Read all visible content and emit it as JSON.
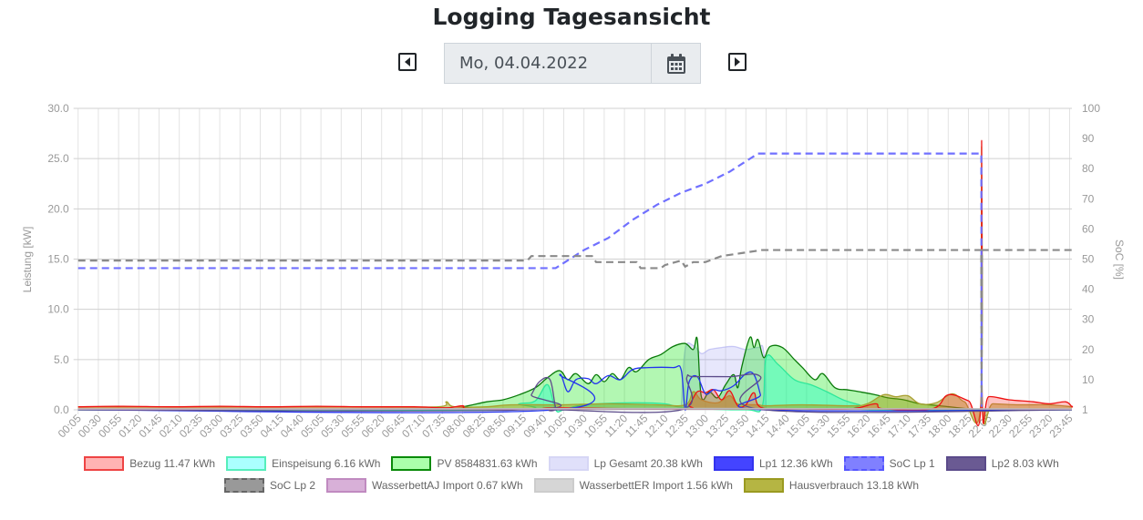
{
  "header": {
    "title": "Logging Tagesansicht",
    "date": "Mo, 04.04.2022",
    "prev_icon": "caret-left-icon",
    "next_icon": "caret-right-icon",
    "calendar_icon": "calendar-icon"
  },
  "chart_data": {
    "type": "line",
    "xlabels": [
      "00:05",
      "00:30",
      "00:55",
      "01:20",
      "01:45",
      "02:10",
      "02:35",
      "03:00",
      "03:25",
      "03:50",
      "04:15",
      "04:40",
      "05:05",
      "05:30",
      "05:55",
      "06:20",
      "06:45",
      "07:10",
      "07:35",
      "08:00",
      "08:25",
      "08:50",
      "09:15",
      "09:40",
      "10:05",
      "10:30",
      "10:55",
      "11:20",
      "11:45",
      "12:10",
      "12:35",
      "13:00",
      "13:25",
      "13:50",
      "14:15",
      "14:40",
      "15:05",
      "15:30",
      "15:55",
      "16:20",
      "16:45",
      "17:10",
      "17:35",
      "18:00",
      "18:25",
      "22:05",
      "22:30",
      "22:55",
      "23:20",
      "23:45"
    ],
    "ylabel": "Leistung [kW]",
    "ylim": [
      0,
      30
    ],
    "yticks": [
      "0.0",
      "5.0",
      "10.0",
      "15.0",
      "20.0",
      "25.0",
      "30.0"
    ],
    "y2label": "SoC [%]",
    "y2lim": [
      0,
      100
    ],
    "y2ticks": [
      "1",
      "10",
      "20",
      "30",
      "40",
      "50",
      "60",
      "70",
      "80",
      "90",
      "100"
    ],
    "grid": true,
    "legend_position": "bottom",
    "series": [
      {
        "name": "Lp Gesamt 20.38 kWh",
        "axis": "left",
        "fill": "rgba(120,120,240,0.18)",
        "stroke": "rgba(170,170,240,0.6)",
        "swatch": "#e0e0fa",
        "swatchBorder": "#d6d6f5",
        "dash": false,
        "points": [
          [
            "12:30",
            0
          ],
          [
            "12:35",
            6.0
          ],
          [
            "12:45",
            6.4
          ],
          [
            "12:55",
            5.6
          ],
          [
            "13:05",
            6.0
          ],
          [
            "13:20",
            6.2
          ],
          [
            "13:35",
            6.3
          ],
          [
            "13:50",
            6.0
          ],
          [
            "14:05",
            6.2
          ],
          [
            "14:12",
            5.8
          ],
          [
            "14:15",
            0
          ]
        ]
      },
      {
        "name": "PV 8584831.63 kWh",
        "axis": "left",
        "fill": "rgba(0,230,0,0.3)",
        "stroke": "#0a7a0a",
        "swatch": "#aaffaa",
        "swatchBorder": "#0a8a0a",
        "dash": false,
        "points": [
          [
            "00:05",
            0
          ],
          [
            "07:30",
            0
          ],
          [
            "08:00",
            0.3
          ],
          [
            "08:30",
            0.8
          ],
          [
            "08:50",
            1.0
          ],
          [
            "09:10",
            1.5
          ],
          [
            "09:30",
            2.2
          ],
          [
            "09:45",
            3.2
          ],
          [
            "10:00",
            3.9
          ],
          [
            "10:10",
            3.0
          ],
          [
            "10:20",
            3.6
          ],
          [
            "10:35",
            2.6
          ],
          [
            "10:45",
            3.5
          ],
          [
            "10:55",
            2.8
          ],
          [
            "11:05",
            3.6
          ],
          [
            "11:15",
            3.0
          ],
          [
            "11:25",
            4.2
          ],
          [
            "11:35",
            3.8
          ],
          [
            "11:50",
            5.0
          ],
          [
            "12:05",
            5.5
          ],
          [
            "12:20",
            6.3
          ],
          [
            "12:35",
            6.6
          ],
          [
            "12:45",
            6.0
          ],
          [
            "12:50",
            7.0
          ],
          [
            "12:55",
            1.3
          ],
          [
            "13:05",
            1.8
          ],
          [
            "13:15",
            1.2
          ],
          [
            "13:25",
            2.5
          ],
          [
            "13:35",
            3.5
          ],
          [
            "13:40",
            2.2
          ],
          [
            "13:45",
            4.3
          ],
          [
            "13:55",
            7.2
          ],
          [
            "14:00",
            6.2
          ],
          [
            "14:05",
            7.0
          ],
          [
            "14:12",
            5.2
          ],
          [
            "14:20",
            6.3
          ],
          [
            "14:35",
            6.2
          ],
          [
            "14:50",
            5.0
          ],
          [
            "15:00",
            4.2
          ],
          [
            "15:15",
            3.0
          ],
          [
            "15:25",
            3.6
          ],
          [
            "15:40",
            2.2
          ],
          [
            "15:55",
            2.0
          ],
          [
            "16:10",
            1.8
          ],
          [
            "16:30",
            1.5
          ],
          [
            "16:45",
            1.2
          ],
          [
            "17:05",
            1.0
          ],
          [
            "17:25",
            0.6
          ],
          [
            "17:50",
            0.4
          ],
          [
            "18:25",
            0.1
          ],
          [
            "20:40",
            0.05
          ],
          [
            "22:05",
            0
          ],
          [
            "23:55",
            0
          ]
        ]
      },
      {
        "name": "Einspeisung 6.16 kWh",
        "axis": "left",
        "fill": "rgba(0,255,200,0.35)",
        "stroke": "#2ee89a",
        "swatch": "#aaffff",
        "swatchBorder": "#55eebb",
        "dash": false,
        "points": [
          [
            "00:05",
            0
          ],
          [
            "08:40",
            0
          ],
          [
            "09:10",
            0.6
          ],
          [
            "09:30",
            0.9
          ],
          [
            "09:45",
            2.5
          ],
          [
            "09:55",
            0
          ],
          [
            "10:05",
            0
          ],
          [
            "10:30",
            0.5
          ],
          [
            "11:30",
            0.7
          ],
          [
            "12:10",
            0.6
          ],
          [
            "12:35",
            0.2
          ],
          [
            "13:50",
            0
          ],
          [
            "14:10",
            0.3
          ],
          [
            "14:15",
            5.2
          ],
          [
            "14:30",
            4.5
          ],
          [
            "14:50",
            3.0
          ],
          [
            "15:10",
            2.5
          ],
          [
            "15:30",
            1.8
          ],
          [
            "15:50",
            1.0
          ],
          [
            "16:10",
            0.5
          ],
          [
            "16:30",
            0
          ],
          [
            "23:55",
            0
          ]
        ]
      },
      {
        "name": "Hausverbrauch 13.18 kWh",
        "axis": "left",
        "fill": "rgba(150,150,0,0.45)",
        "stroke": "#a8a030",
        "swatch": "#b5b543",
        "swatchBorder": "#9a9a20",
        "dash": false,
        "points": [
          [
            "00:05",
            0.3
          ],
          [
            "02:00",
            0.3
          ],
          [
            "04:00",
            0.3
          ],
          [
            "06:00",
            0.3
          ],
          [
            "07:30",
            0.3
          ],
          [
            "07:40",
            0.8
          ],
          [
            "07:50",
            0.3
          ],
          [
            "08:30",
            0.3
          ],
          [
            "09:00",
            0.5
          ],
          [
            "10:00",
            0.5
          ],
          [
            "11:00",
            0.6
          ],
          [
            "12:00",
            0.5
          ],
          [
            "12:35",
            0.5
          ],
          [
            "12:45",
            1.8
          ],
          [
            "12:55",
            1.0
          ],
          [
            "13:15",
            0.7
          ],
          [
            "13:30",
            1.4
          ],
          [
            "13:40",
            0.6
          ],
          [
            "14:05",
            0.5
          ],
          [
            "14:15",
            0.4
          ],
          [
            "15:00",
            0.5
          ],
          [
            "16:00",
            0.4
          ],
          [
            "16:20",
            0.6
          ],
          [
            "16:40",
            1.5
          ],
          [
            "16:55",
            1.3
          ],
          [
            "17:10",
            1.4
          ],
          [
            "17:25",
            0.6
          ],
          [
            "17:45",
            0.7
          ],
          [
            "18:05",
            1.6
          ],
          [
            "18:20",
            0.8
          ],
          [
            "20:40",
            0.7
          ],
          [
            "20:48",
            26.2
          ],
          [
            "20:56",
            0.6
          ],
          [
            "22:10",
            0.6
          ],
          [
            "22:40",
            0.5
          ],
          [
            "23:20",
            0.5
          ],
          [
            "23:55",
            0.3
          ]
        ]
      },
      {
        "name": "Bezug 11.47 kWh",
        "axis": "left",
        "fill": "rgba(255,60,60,0.3)",
        "stroke": "#ee1111",
        "swatch": "#ffb3b3",
        "swatchBorder": "#ee4444",
        "dash": false,
        "points": [
          [
            "00:05",
            0.3
          ],
          [
            "01:00",
            0.35
          ],
          [
            "02:00",
            0.3
          ],
          [
            "03:00",
            0.35
          ],
          [
            "04:00",
            0.3
          ],
          [
            "05:00",
            0.35
          ],
          [
            "06:00",
            0.3
          ],
          [
            "07:00",
            0.3
          ],
          [
            "07:40",
            0.2
          ],
          [
            "08:00",
            0.4
          ],
          [
            "08:10",
            0.1
          ],
          [
            "09:30",
            0.1
          ],
          [
            "10:00",
            0.2
          ],
          [
            "12:30",
            0.1
          ],
          [
            "12:40",
            0.5
          ],
          [
            "12:50",
            1.8
          ],
          [
            "13:00",
            1.7
          ],
          [
            "13:10",
            2.0
          ],
          [
            "13:20",
            1.0
          ],
          [
            "13:30",
            1.9
          ],
          [
            "13:40",
            0.4
          ],
          [
            "13:50",
            0.5
          ],
          [
            "14:00",
            1.7
          ],
          [
            "14:10",
            0.2
          ],
          [
            "15:00",
            0.1
          ],
          [
            "16:00",
            0.1
          ],
          [
            "16:30",
            0.6
          ],
          [
            "16:40",
            0.1
          ],
          [
            "17:40",
            0.1
          ],
          [
            "18:00",
            1.5
          ],
          [
            "18:25",
            0.9
          ],
          [
            "20:40",
            0.4
          ],
          [
            "20:48",
            26.8
          ],
          [
            "20:56",
            0.5
          ],
          [
            "22:05",
            1.3
          ],
          [
            "22:30",
            1.0
          ],
          [
            "23:00",
            0.8
          ],
          [
            "23:20",
            0.6
          ],
          [
            "23:40",
            0.8
          ],
          [
            "23:50",
            0.3
          ],
          [
            "23:55",
            0.4
          ]
        ]
      },
      {
        "name": "Lp1 12.36 kWh",
        "axis": "left",
        "fill": "none",
        "stroke": "#2233ee",
        "swatch": "#4444ff",
        "swatchBorder": "#3333ee",
        "dash": false,
        "points": [
          [
            "00:05",
            0
          ],
          [
            "09:55",
            0
          ],
          [
            "10:00",
            3.5
          ],
          [
            "10:10",
            1.8
          ],
          [
            "10:20",
            3.0
          ],
          [
            "10:35",
            3.1
          ],
          [
            "10:45",
            2.6
          ],
          [
            "11:00",
            3.4
          ],
          [
            "11:15",
            3.0
          ],
          [
            "11:30",
            4.0
          ],
          [
            "11:50",
            4.2
          ],
          [
            "12:20",
            4.2
          ],
          [
            "12:30",
            4.0
          ],
          [
            "12:35",
            0
          ],
          [
            "12:40",
            2.8
          ],
          [
            "12:50",
            3.3
          ],
          [
            "13:00",
            1.6
          ],
          [
            "13:10",
            2.0
          ],
          [
            "13:20",
            1.9
          ],
          [
            "13:35",
            2.4
          ],
          [
            "13:50",
            3.6
          ],
          [
            "14:00",
            3.5
          ],
          [
            "14:08",
            1.5
          ],
          [
            "14:12",
            0
          ],
          [
            "23:55",
            0
          ]
        ]
      },
      {
        "name": "SoC Lp 1",
        "axis": "right",
        "fill": "none",
        "stroke": "#7070ff",
        "swatch": "#8080ff",
        "swatchBorder": "#5555ff",
        "dash": true,
        "points": [
          [
            "00:05",
            47
          ],
          [
            "09:55",
            47
          ],
          [
            "10:30",
            53
          ],
          [
            "11:00",
            57
          ],
          [
            "11:30",
            63
          ],
          [
            "12:00",
            68
          ],
          [
            "12:30",
            72
          ],
          [
            "13:00",
            75
          ],
          [
            "13:30",
            79
          ],
          [
            "14:05",
            85
          ],
          [
            "20:45",
            85
          ],
          [
            "20:48",
            1
          ]
        ]
      },
      {
        "name": "Lp2 8.03 kWh",
        "axis": "left",
        "fill": "none",
        "stroke": "#5b4b8a",
        "swatch": "#6a5a93",
        "swatchBorder": "#5b4b8a",
        "dash": false,
        "points": [
          [
            "00:05",
            0
          ],
          [
            "09:15",
            0
          ],
          [
            "09:25",
            1.5
          ],
          [
            "09:35",
            2.8
          ],
          [
            "09:48",
            3.0
          ],
          [
            "09:55",
            0.2
          ],
          [
            "10:00",
            0
          ],
          [
            "12:30",
            0
          ],
          [
            "12:37",
            3.2
          ],
          [
            "12:45",
            3.3
          ],
          [
            "13:30",
            3.3
          ],
          [
            "14:08",
            3.3
          ],
          [
            "14:13",
            0
          ],
          [
            "23:55",
            0
          ]
        ]
      },
      {
        "name": "SoC Lp 2",
        "axis": "right",
        "fill": "none",
        "stroke": "#8a8a8a",
        "swatch": "#999999",
        "swatchBorder": "#666666",
        "dash": true,
        "points": [
          [
            "00:05",
            49.5
          ],
          [
            "09:20",
            49.5
          ],
          [
            "09:25",
            51
          ],
          [
            "10:40",
            51
          ],
          [
            "10:45",
            49
          ],
          [
            "11:35",
            49
          ],
          [
            "11:40",
            47
          ],
          [
            "12:05",
            47
          ],
          [
            "12:10",
            48
          ],
          [
            "12:30",
            49.5
          ],
          [
            "12:35",
            47.5
          ],
          [
            "12:45",
            49
          ],
          [
            "13:00",
            49
          ],
          [
            "13:20",
            51
          ],
          [
            "13:45",
            52
          ],
          [
            "14:10",
            53
          ],
          [
            "20:44",
            53
          ],
          [
            "20:48",
            1
          ],
          [
            "20:52",
            53
          ],
          [
            "23:55",
            53
          ]
        ]
      },
      {
        "name": "WasserbettAJ Import 0.67 kWh",
        "axis": "left",
        "fill": "rgba(200,140,200,0.3)",
        "stroke": "#c080c0",
        "swatch": "#d8b0d8",
        "swatchBorder": "#c08ac0",
        "dash": false,
        "points": [
          [
            "00:05",
            0.05
          ],
          [
            "06:00",
            0.05
          ],
          [
            "12:00",
            0.1
          ],
          [
            "18:00",
            0.1
          ],
          [
            "23:55",
            0.05
          ]
        ]
      },
      {
        "name": "WasserbettER Import 1.56 kWh",
        "axis": "left",
        "fill": "rgba(190,190,190,0.3)",
        "stroke": "#bbbbbb",
        "swatch": "#d6d6d6",
        "swatchBorder": "#cccccc",
        "dash": false,
        "points": [
          [
            "00:05",
            0.1
          ],
          [
            "06:00",
            0.1
          ],
          [
            "12:00",
            0.15
          ],
          [
            "18:00",
            0.1
          ],
          [
            "23:55",
            0.1
          ]
        ]
      }
    ],
    "legend_rows": [
      [
        4,
        2,
        1,
        0,
        5,
        6,
        7
      ],
      [
        8,
        9,
        10,
        3
      ]
    ]
  }
}
